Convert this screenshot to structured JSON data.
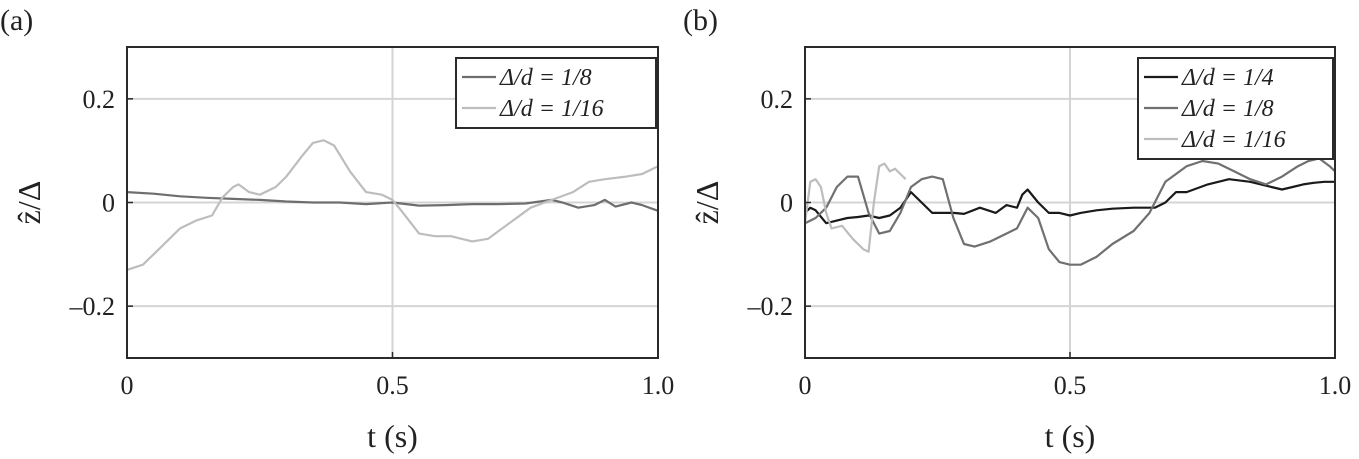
{
  "chart_data": [
    {
      "type": "line",
      "panel_label": "(a)",
      "xlabel": "t (s)",
      "ylabel": "ẑ/Δ",
      "xlim": [
        0,
        1.0
      ],
      "ylim": [
        -0.3,
        0.3
      ],
      "xticks": [
        0,
        0.5,
        1.0
      ],
      "xtick_labels": [
        "0",
        "0.5",
        "1.0"
      ],
      "yticks": [
        -0.2,
        0,
        0.2
      ],
      "ytick_labels": [
        "–0.2",
        "0",
        "0.2"
      ],
      "grid": true,
      "legend_position": "top-right",
      "series": [
        {
          "name": "Δ/d = 1/8",
          "color": "#6e6e6e",
          "x": [
            0.0,
            0.05,
            0.1,
            0.15,
            0.2,
            0.25,
            0.3,
            0.35,
            0.4,
            0.45,
            0.5,
            0.55,
            0.6,
            0.65,
            0.7,
            0.75,
            0.8,
            0.82,
            0.85,
            0.88,
            0.9,
            0.92,
            0.95,
            0.97,
            1.0
          ],
          "y": [
            0.02,
            0.017,
            0.012,
            0.009,
            0.007,
            0.005,
            0.002,
            0.0,
            0.0,
            -0.003,
            0.0,
            -0.006,
            -0.005,
            -0.003,
            -0.003,
            -0.002,
            0.005,
            0.0,
            -0.01,
            -0.005,
            0.005,
            -0.008,
            0.0,
            -0.005,
            -0.016
          ]
        },
        {
          "name": "Δ/d = 1/16",
          "color": "#bdbdbd",
          "x": [
            0.0,
            0.03,
            0.06,
            0.1,
            0.13,
            0.16,
            0.18,
            0.2,
            0.21,
            0.23,
            0.25,
            0.28,
            0.3,
            0.33,
            0.35,
            0.37,
            0.39,
            0.42,
            0.45,
            0.48,
            0.5,
            0.52,
            0.55,
            0.58,
            0.61,
            0.65,
            0.68,
            0.72,
            0.76,
            0.8,
            0.84,
            0.87,
            0.9,
            0.94,
            0.97,
            1.0
          ],
          "y": [
            -0.13,
            -0.12,
            -0.09,
            -0.05,
            -0.035,
            -0.025,
            0.01,
            0.03,
            0.035,
            0.02,
            0.015,
            0.03,
            0.05,
            0.09,
            0.115,
            0.12,
            0.11,
            0.06,
            0.02,
            0.015,
            0.005,
            -0.02,
            -0.06,
            -0.065,
            -0.065,
            -0.075,
            -0.07,
            -0.04,
            -0.01,
            0.005,
            0.02,
            0.04,
            0.045,
            0.05,
            0.055,
            0.07
          ]
        }
      ]
    },
    {
      "type": "line",
      "panel_label": "(b)",
      "xlabel": "t (s)",
      "ylabel": "ẑ/Δ",
      "xlim": [
        0,
        1.0
      ],
      "ylim": [
        -0.3,
        0.3
      ],
      "xticks": [
        0,
        0.5,
        1.0
      ],
      "xtick_labels": [
        "0",
        "0.5",
        "1.0"
      ],
      "yticks": [
        -0.2,
        0,
        0.2
      ],
      "ytick_labels": [
        "–0.2",
        "0",
        "0.2"
      ],
      "grid": true,
      "legend_position": "top-right",
      "series": [
        {
          "name": "Δ/d = 1/4",
          "color": "#1a1a1a",
          "x": [
            0.0,
            0.01,
            0.02,
            0.04,
            0.06,
            0.08,
            0.1,
            0.12,
            0.14,
            0.16,
            0.18,
            0.2,
            0.22,
            0.24,
            0.26,
            0.28,
            0.3,
            0.33,
            0.36,
            0.38,
            0.4,
            0.41,
            0.42,
            0.44,
            0.46,
            0.48,
            0.5,
            0.52,
            0.55,
            0.58,
            0.62,
            0.66,
            0.68,
            0.7,
            0.72,
            0.76,
            0.8,
            0.84,
            0.88,
            0.9,
            0.92,
            0.94,
            0.96,
            0.98,
            1.0
          ],
          "y": [
            -0.02,
            -0.01,
            -0.015,
            -0.04,
            -0.035,
            -0.03,
            -0.028,
            -0.025,
            -0.03,
            -0.025,
            -0.01,
            0.02,
            0.0,
            -0.02,
            -0.02,
            -0.02,
            -0.022,
            -0.01,
            -0.02,
            -0.005,
            -0.01,
            0.015,
            0.025,
            0.0,
            -0.02,
            -0.02,
            -0.025,
            -0.02,
            -0.015,
            -0.012,
            -0.01,
            -0.01,
            0.0,
            0.02,
            0.02,
            0.035,
            0.045,
            0.04,
            0.03,
            0.025,
            0.03,
            0.035,
            0.038,
            0.04,
            0.04
          ]
        },
        {
          "name": "Δ/d = 1/8",
          "color": "#707070",
          "x": [
            0.0,
            0.02,
            0.04,
            0.06,
            0.08,
            0.1,
            0.12,
            0.14,
            0.16,
            0.18,
            0.2,
            0.22,
            0.24,
            0.26,
            0.28,
            0.3,
            0.32,
            0.35,
            0.38,
            0.4,
            0.42,
            0.44,
            0.46,
            0.48,
            0.5,
            0.52,
            0.55,
            0.58,
            0.62,
            0.65,
            0.68,
            0.72,
            0.75,
            0.78,
            0.81,
            0.84,
            0.87,
            0.9,
            0.93,
            0.95,
            0.97,
            0.99,
            1.0
          ],
          "y": [
            -0.04,
            -0.03,
            -0.01,
            0.03,
            0.05,
            0.05,
            -0.02,
            -0.06,
            -0.055,
            -0.02,
            0.03,
            0.045,
            0.05,
            0.045,
            -0.03,
            -0.08,
            -0.085,
            -0.075,
            -0.06,
            -0.05,
            -0.01,
            -0.03,
            -0.09,
            -0.115,
            -0.12,
            -0.12,
            -0.105,
            -0.08,
            -0.055,
            -0.02,
            0.04,
            0.07,
            0.08,
            0.075,
            0.06,
            0.045,
            0.035,
            0.05,
            0.07,
            0.08,
            0.085,
            0.07,
            0.06
          ]
        },
        {
          "name": "Δ/d = 1/16",
          "color": "#bdbdbd",
          "x": [
            0.0,
            0.01,
            0.02,
            0.03,
            0.04,
            0.05,
            0.07,
            0.09,
            0.11,
            0.12,
            0.13,
            0.14,
            0.15,
            0.16,
            0.17,
            0.18,
            0.19
          ],
          "y": [
            -0.04,
            0.04,
            0.045,
            0.03,
            -0.02,
            -0.05,
            -0.045,
            -0.07,
            -0.09,
            -0.095,
            0.0,
            0.07,
            0.075,
            0.06,
            0.065,
            0.055,
            0.045
          ]
        }
      ]
    }
  ]
}
